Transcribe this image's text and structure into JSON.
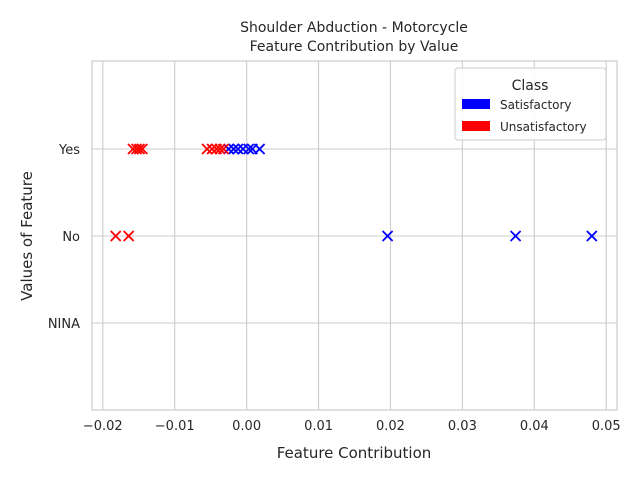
{
  "chart_data": {
    "type": "scatter",
    "title": "Shoulder Abduction - Motorcycle",
    "subtitle": "Feature Contribution by Value",
    "xlabel": "Feature Contribution",
    "ylabel": "Values of Feature",
    "xlim": [
      -0.0215,
      0.0515
    ],
    "x_ticks": [
      -0.02,
      -0.01,
      0.0,
      0.01,
      0.02,
      0.03,
      0.04,
      0.05
    ],
    "x_tick_labels": [
      "−0.02",
      "−0.01",
      "0.00",
      "0.01",
      "0.02",
      "0.03",
      "0.04",
      "0.05"
    ],
    "categories": [
      "Yes",
      "No",
      "NINA"
    ],
    "grid": true,
    "legend": {
      "title": "Class",
      "placement": "top-right",
      "entries": [
        {
          "label": "Satisfactory",
          "color": "#0000ff"
        },
        {
          "label": "Unsatisfactory",
          "color": "#ff0000"
        }
      ]
    },
    "series": [
      {
        "name": "Satisfactory",
        "color": "#0000ff",
        "points": [
          {
            "x": -0.0025,
            "y": "Yes"
          },
          {
            "x": -0.0018,
            "y": "Yes"
          },
          {
            "x": -0.0012,
            "y": "Yes"
          },
          {
            "x": -0.0005,
            "y": "Yes"
          },
          {
            "x": 0.0003,
            "y": "Yes"
          },
          {
            "x": 0.0008,
            "y": "Yes"
          },
          {
            "x": 0.0018,
            "y": "Yes"
          },
          {
            "x": 0.0196,
            "y": "No"
          },
          {
            "x": 0.0374,
            "y": "No"
          },
          {
            "x": 0.048,
            "y": "No"
          }
        ]
      },
      {
        "name": "Unsatisfactory",
        "color": "#ff0000",
        "points": [
          {
            "x": -0.0158,
            "y": "Yes"
          },
          {
            "x": -0.0153,
            "y": "Yes"
          },
          {
            "x": -0.0149,
            "y": "Yes"
          },
          {
            "x": -0.0145,
            "y": "Yes"
          },
          {
            "x": -0.0055,
            "y": "Yes"
          },
          {
            "x": -0.0048,
            "y": "Yes"
          },
          {
            "x": -0.0042,
            "y": "Yes"
          },
          {
            "x": -0.0037,
            "y": "Yes"
          },
          {
            "x": -0.0032,
            "y": "Yes"
          },
          {
            "x": -0.0182,
            "y": "No"
          },
          {
            "x": -0.0164,
            "y": "No"
          }
        ]
      }
    ]
  }
}
